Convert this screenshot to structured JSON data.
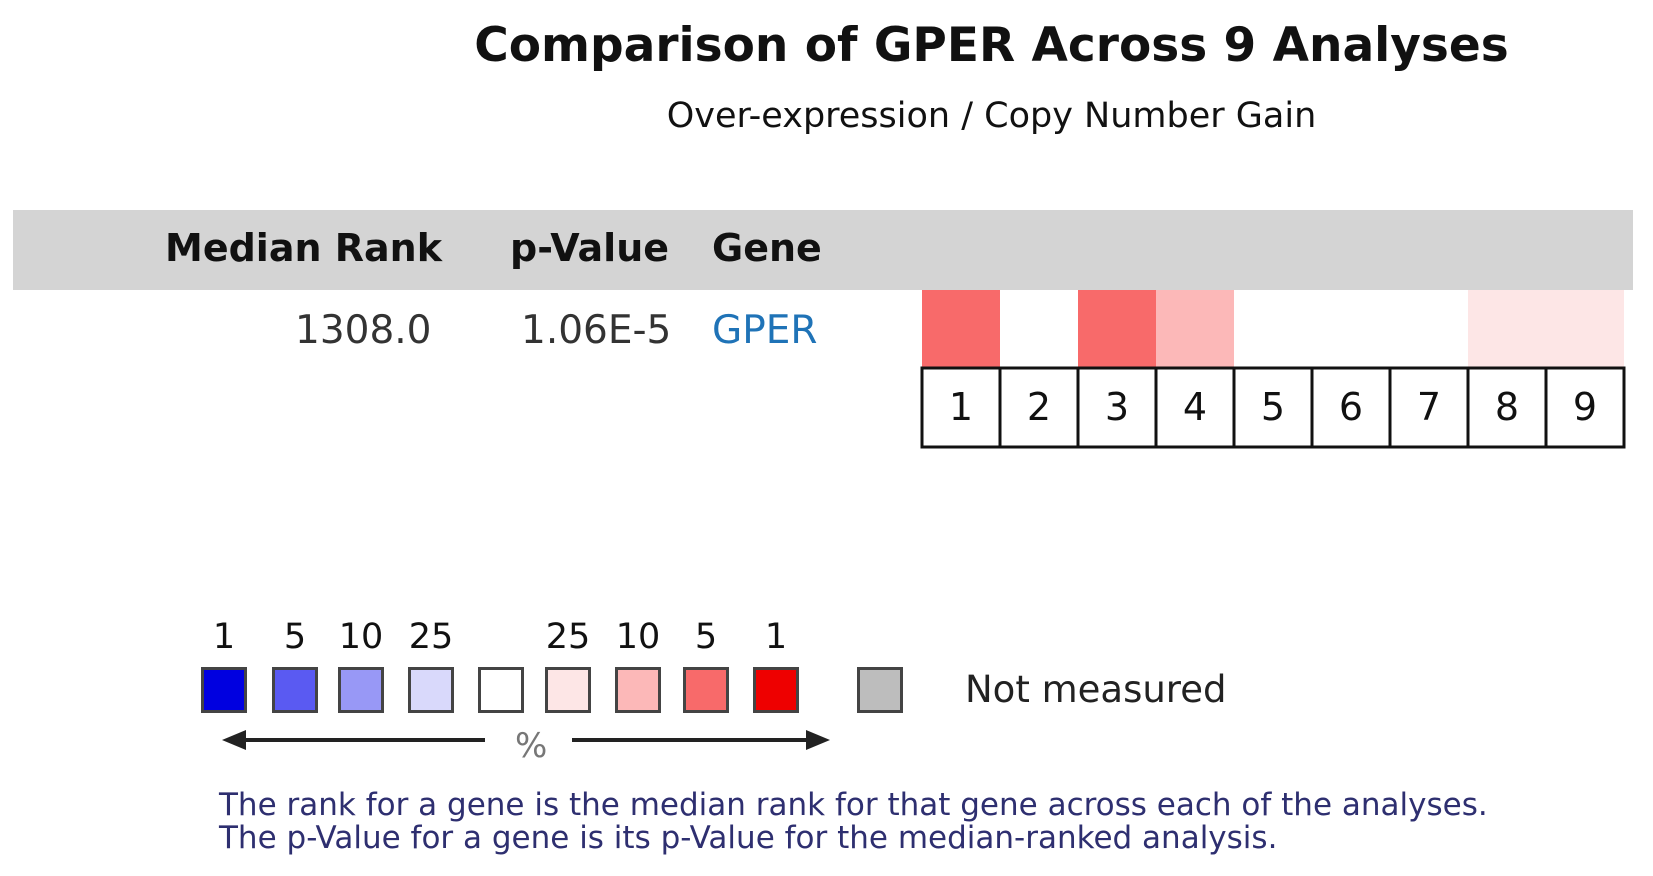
{
  "title": "Comparison of GPER Across 9 Analyses",
  "subtitle": "Over-expression / Copy Number Gain",
  "table": {
    "headers": {
      "median_rank": "Median Rank",
      "p_value": "p-Value",
      "gene": "Gene"
    },
    "row": {
      "median_rank": "1308.0",
      "p_value": "1.06E-5",
      "gene": "GPER"
    }
  },
  "chart_data": {
    "type": "heatmap",
    "title": "Comparison of GPER Across 9 Analyses",
    "subtitle": "Over-expression / Copy Number Gain",
    "row_label": "GPER",
    "analyses": [
      "1",
      "2",
      "3",
      "4",
      "5",
      "6",
      "7",
      "8",
      "9"
    ],
    "cell_colors": [
      "#f86a6a",
      "#ffffff",
      "#f86a6a",
      "#fcb8b8",
      "#ffffff",
      "#ffffff",
      "#ffffff",
      "#fde6e6",
      "#fde6e6"
    ],
    "percentile_bins": [
      "5",
      "not significant",
      "5",
      "10",
      "not significant",
      "not significant",
      "not significant",
      "25",
      "25"
    ]
  },
  "legend": {
    "labels": [
      "1",
      "5",
      "10",
      "25",
      "",
      "25",
      "10",
      "5",
      "1"
    ],
    "colors": [
      "#0000e0",
      "#5a5af2",
      "#9898f6",
      "#d9d9fb",
      "#ffffff",
      "#fde6e6",
      "#fcb8b8",
      "#f86a6a",
      "#ee0000"
    ],
    "not_measured_label": "Not measured",
    "not_measured_color": "#bdbdbd",
    "percent_symbol": "%"
  },
  "footnote": {
    "line1": "The rank for a gene is the median rank for that gene across each of the analyses.",
    "line2": "The p-Value for a gene is its p-Value for the median-ranked analysis."
  }
}
